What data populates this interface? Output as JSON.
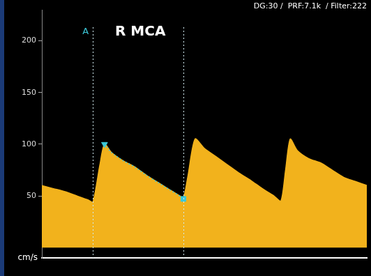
{
  "chart_data": {
    "type": "line",
    "title": "R MCA",
    "subtitle": "DG:30 /  PRF:7.1k  / Filter:222",
    "annotations": [
      "A"
    ],
    "y_label": "cm/s",
    "x": [
      0,
      0.1,
      0.2,
      0.3,
      0.4,
      0.44,
      0.5,
      0.54,
      0.6,
      0.7,
      0.8,
      0.9,
      1.0,
      1.1,
      1.2,
      1.22,
      1.26,
      1.32,
      1.4,
      1.5,
      1.6,
      1.7,
      1.8,
      1.9,
      2.0,
      2.06,
      2.1,
      2.14,
      2.2,
      2.3,
      2.4,
      2.5,
      2.6,
      2.7,
      2.8
    ],
    "values": [
      60,
      57,
      54,
      50,
      46,
      44,
      80,
      100,
      92,
      84,
      78,
      70,
      63,
      56,
      49,
      47,
      70,
      105,
      96,
      88,
      80,
      72,
      65,
      57,
      50,
      45,
      75,
      105,
      94,
      86,
      82,
      75,
      68,
      64,
      60
    ],
    "color": "#f2b21c",
    "markers": [
      {
        "x": 0.54,
        "y": 100
      },
      {
        "x": 1.22,
        "y": 47
      }
    ],
    "cursors": [
      0.44,
      1.22
    ],
    "xlim": [
      0,
      2.8
    ],
    "ylim": [
      -10,
      230
    ],
    "yticks": [
      50,
      100,
      150,
      200
    ],
    "grid": false,
    "tick_labels": "y"
  }
}
